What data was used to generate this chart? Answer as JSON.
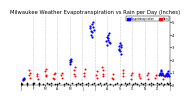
{
  "title": "Milwaukee Weather Evapotranspiration vs Rain per Day (Inches)",
  "title_fontsize": 3.8,
  "background_color": "#ffffff",
  "legend_blue_label": "Evapotranspiration",
  "legend_red_label": "Rain",
  "xlim": [
    0,
    365
  ],
  "ylim": [
    0,
    0.55
  ],
  "yticks": [
    0.0,
    0.1,
    0.2,
    0.3,
    0.4,
    0.5
  ],
  "ytick_labels": [
    "0",
    ".1",
    ".2",
    ".3",
    ".4",
    ".5"
  ],
  "grid_x_positions": [
    31,
    59,
    90,
    120,
    151,
    181,
    212,
    243,
    273,
    304,
    334
  ],
  "xtick_positions": [
    1,
    15,
    31,
    45,
    59,
    74,
    90,
    105,
    120,
    136,
    151,
    166,
    181,
    196,
    212,
    227,
    243,
    258,
    273,
    289,
    304,
    319,
    334,
    349,
    365
  ],
  "xtick_labels": [
    "J",
    "",
    "F",
    "",
    "M",
    "",
    "A",
    "",
    "M",
    "",
    "J",
    "",
    "J",
    "",
    "A",
    "",
    "S",
    "",
    "O",
    "",
    "N",
    "",
    "D",
    "",
    "J"
  ],
  "et_color": "#0000ff",
  "rain_color": "#ff0000",
  "black_color": "#000000",
  "dot_size_et": 2.5,
  "dot_size_rain": 2.0,
  "dot_size_black": 1.5,
  "et_data": [
    [
      170,
      0.47
    ],
    [
      171,
      0.45
    ],
    [
      172,
      0.43
    ],
    [
      173,
      0.4
    ],
    [
      174,
      0.38
    ],
    [
      175,
      0.42
    ],
    [
      176,
      0.48
    ],
    [
      177,
      0.5
    ],
    [
      178,
      0.46
    ],
    [
      179,
      0.44
    ],
    [
      210,
      0.35
    ],
    [
      211,
      0.38
    ],
    [
      212,
      0.32
    ],
    [
      213,
      0.36
    ],
    [
      214,
      0.4
    ],
    [
      215,
      0.37
    ],
    [
      216,
      0.34
    ],
    [
      217,
      0.41
    ],
    [
      218,
      0.33
    ],
    [
      240,
      0.28
    ],
    [
      241,
      0.31
    ],
    [
      242,
      0.29
    ],
    [
      243,
      0.33
    ],
    [
      244,
      0.27
    ],
    [
      245,
      0.3
    ],
    [
      246,
      0.25
    ],
    [
      247,
      0.32
    ],
    [
      120,
      0.18
    ],
    [
      121,
      0.2
    ],
    [
      122,
      0.17
    ],
    [
      123,
      0.19
    ],
    [
      124,
      0.21
    ],
    [
      5,
      0.05
    ],
    [
      6,
      0.04
    ],
    [
      7,
      0.06
    ],
    [
      8,
      0.05
    ],
    [
      340,
      0.08
    ],
    [
      341,
      0.1
    ],
    [
      342,
      0.09
    ],
    [
      343,
      0.11
    ],
    [
      344,
      0.08
    ],
    [
      345,
      0.12
    ],
    [
      346,
      0.09
    ],
    [
      347,
      0.1
    ],
    [
      348,
      0.08
    ],
    [
      355,
      0.07
    ],
    [
      356,
      0.09
    ],
    [
      357,
      0.08
    ],
    [
      358,
      0.1
    ],
    [
      359,
      0.07
    ],
    [
      360,
      0.11
    ],
    [
      361,
      0.08
    ],
    [
      362,
      0.09
    ],
    [
      363,
      0.07
    ]
  ],
  "rain_data": [
    [
      20,
      0.08
    ],
    [
      21,
      0.12
    ],
    [
      22,
      0.06
    ],
    [
      23,
      0.1
    ],
    [
      40,
      0.07
    ],
    [
      41,
      0.09
    ],
    [
      42,
      0.05
    ],
    [
      60,
      0.11
    ],
    [
      61,
      0.08
    ],
    [
      62,
      0.13
    ],
    [
      63,
      0.07
    ],
    [
      80,
      0.06
    ],
    [
      81,
      0.09
    ],
    [
      82,
      0.05
    ],
    [
      83,
      0.1
    ],
    [
      100,
      0.08
    ],
    [
      101,
      0.06
    ],
    [
      102,
      0.1
    ],
    [
      130,
      0.12
    ],
    [
      131,
      0.09
    ],
    [
      132,
      0.14
    ],
    [
      133,
      0.07
    ],
    [
      155,
      0.1
    ],
    [
      156,
      0.07
    ],
    [
      157,
      0.13
    ],
    [
      185,
      0.08
    ],
    [
      186,
      0.11
    ],
    [
      187,
      0.06
    ],
    [
      200,
      0.14
    ],
    [
      201,
      0.09
    ],
    [
      202,
      0.12
    ],
    [
      203,
      0.07
    ],
    [
      225,
      0.06
    ],
    [
      226,
      0.09
    ],
    [
      227,
      0.05
    ],
    [
      250,
      0.1
    ],
    [
      251,
      0.07
    ],
    [
      252,
      0.12
    ],
    [
      270,
      0.08
    ],
    [
      271,
      0.05
    ],
    [
      272,
      0.1
    ],
    [
      290,
      0.07
    ],
    [
      291,
      0.09
    ],
    [
      292,
      0.06
    ],
    [
      310,
      0.08
    ],
    [
      311,
      0.05
    ],
    [
      312,
      0.1
    ],
    [
      330,
      0.06
    ],
    [
      331,
      0.08
    ],
    [
      350,
      0.05
    ],
    [
      351,
      0.07
    ]
  ],
  "black_data": [
    [
      1,
      0.01
    ],
    [
      2,
      0.02
    ],
    [
      3,
      0.01
    ],
    [
      15,
      0.02
    ],
    [
      16,
      0.01
    ],
    [
      30,
      0.02
    ],
    [
      31,
      0.01
    ],
    [
      32,
      0.02
    ],
    [
      45,
      0.01
    ],
    [
      46,
      0.02
    ],
    [
      55,
      0.01
    ],
    [
      65,
      0.02
    ],
    [
      70,
      0.01
    ],
    [
      75,
      0.02
    ],
    [
      85,
      0.01
    ],
    [
      90,
      0.01
    ],
    [
      95,
      0.02
    ],
    [
      105,
      0.01
    ],
    [
      110,
      0.02
    ],
    [
      115,
      0.01
    ],
    [
      125,
      0.02
    ],
    [
      135,
      0.01
    ],
    [
      140,
      0.02
    ],
    [
      145,
      0.01
    ],
    [
      150,
      0.02
    ],
    [
      160,
      0.01
    ],
    [
      165,
      0.02
    ],
    [
      175,
      0.01
    ],
    [
      180,
      0.02
    ],
    [
      190,
      0.01
    ],
    [
      195,
      0.02
    ],
    [
      205,
      0.01
    ],
    [
      210,
      0.02
    ],
    [
      220,
      0.01
    ],
    [
      230,
      0.01
    ],
    [
      235,
      0.02
    ],
    [
      245,
      0.01
    ],
    [
      255,
      0.02
    ],
    [
      260,
      0.01
    ],
    [
      265,
      0.02
    ],
    [
      275,
      0.01
    ],
    [
      280,
      0.02
    ],
    [
      285,
      0.01
    ],
    [
      295,
      0.02
    ],
    [
      300,
      0.01
    ],
    [
      305,
      0.02
    ],
    [
      315,
      0.01
    ],
    [
      320,
      0.02
    ],
    [
      325,
      0.01
    ],
    [
      335,
      0.02
    ],
    [
      338,
      0.01
    ],
    [
      345,
      0.02
    ],
    [
      352,
      0.01
    ],
    [
      358,
      0.02
    ],
    [
      362,
      0.01
    ],
    [
      365,
      0.02
    ]
  ]
}
